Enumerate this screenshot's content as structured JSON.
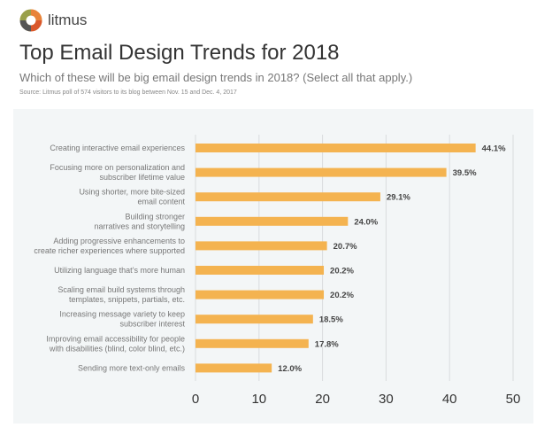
{
  "brand": {
    "name": "litmus"
  },
  "header": {
    "title": "Top Email Design Trends for 2018",
    "subtitle": "Which of these will be big email design trends in 2018? (Select all that apply.)",
    "source": "Source: Litmus poll of 574 visitors to its blog between Nov. 15 and Dec. 4, 2017"
  },
  "chart_data": {
    "type": "bar",
    "orientation": "horizontal",
    "categories": [
      [
        "Creating interactive email experiences"
      ],
      [
        "Focusing more on personalization and",
        "subscriber lifetime value"
      ],
      [
        "Using shorter, more bite-sized",
        "email content"
      ],
      [
        "Building stronger",
        "narratives and storytelling"
      ],
      [
        "Adding progressive enhancements to",
        "create richer experiences where supported"
      ],
      [
        "Utilizing language that’s more human"
      ],
      [
        "Scaling email build systems through",
        "templates, snippets, partials, etc."
      ],
      [
        "Increasing message variety to keep",
        "subscriber interest"
      ],
      [
        "Improving email accessibility for people",
        "with disabilities (blind, color blind, etc.)"
      ],
      [
        "Sending more text-only emails"
      ]
    ],
    "values": [
      44.1,
      39.5,
      29.1,
      24.0,
      20.7,
      20.2,
      20.2,
      18.5,
      17.8,
      12.0
    ],
    "value_labels": [
      "44.1%",
      "39.5%",
      "29.1%",
      "24.0%",
      "20.7%",
      "20.2%",
      "20.2%",
      "18.5%",
      "17.8%",
      "12.0%"
    ],
    "xlim": [
      0,
      50
    ],
    "xticks": [
      "0",
      "10",
      "20",
      "30",
      "40",
      "50"
    ],
    "grid": true,
    "bar_color": "#f4b350",
    "grid_color": "#d9dcde"
  }
}
